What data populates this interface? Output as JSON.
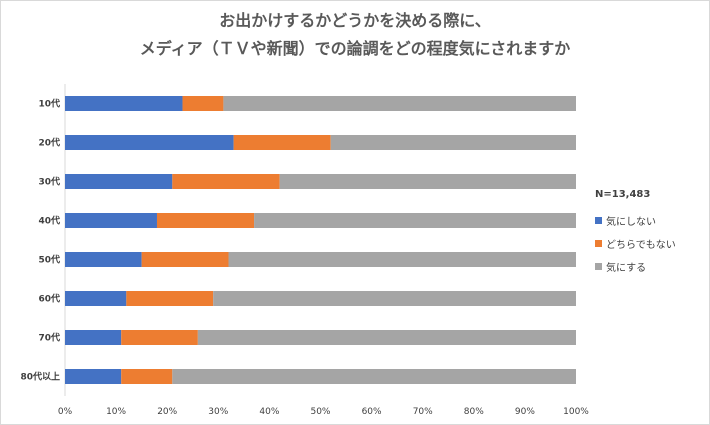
{
  "colors": {
    "s0": "#4472c4",
    "s1": "#ed7d31",
    "s2": "#a5a5a5"
  },
  "chart_data": {
    "type": "bar",
    "orientation": "horizontal",
    "stacked": true,
    "title_lines": [
      "お出かけするかどうかを決める際に、",
      "メディア（ＴＶや新聞）での論調をどの程度気にされますか"
    ],
    "categories": [
      "10代",
      "20代",
      "30代",
      "40代",
      "50代",
      "60代",
      "70代",
      "80代以上"
    ],
    "series": [
      {
        "name": "気にしない",
        "values": [
          23,
          33,
          21,
          18,
          15,
          12,
          11,
          11
        ]
      },
      {
        "name": "どちらでもない",
        "values": [
          8,
          19,
          21,
          19,
          17,
          17,
          15,
          10
        ]
      },
      {
        "name": "気にする",
        "values": [
          69,
          48,
          58,
          63,
          68,
          71,
          74,
          79
        ]
      }
    ],
    "x_ticks": [
      "0%",
      "10%",
      "20%",
      "30%",
      "40%",
      "50%",
      "60%",
      "70%",
      "80%",
      "90%",
      "100%"
    ],
    "xlim": [
      0,
      100
    ],
    "legend_note": "N=13,483",
    "legend_position": "right",
    "grid": false
  }
}
